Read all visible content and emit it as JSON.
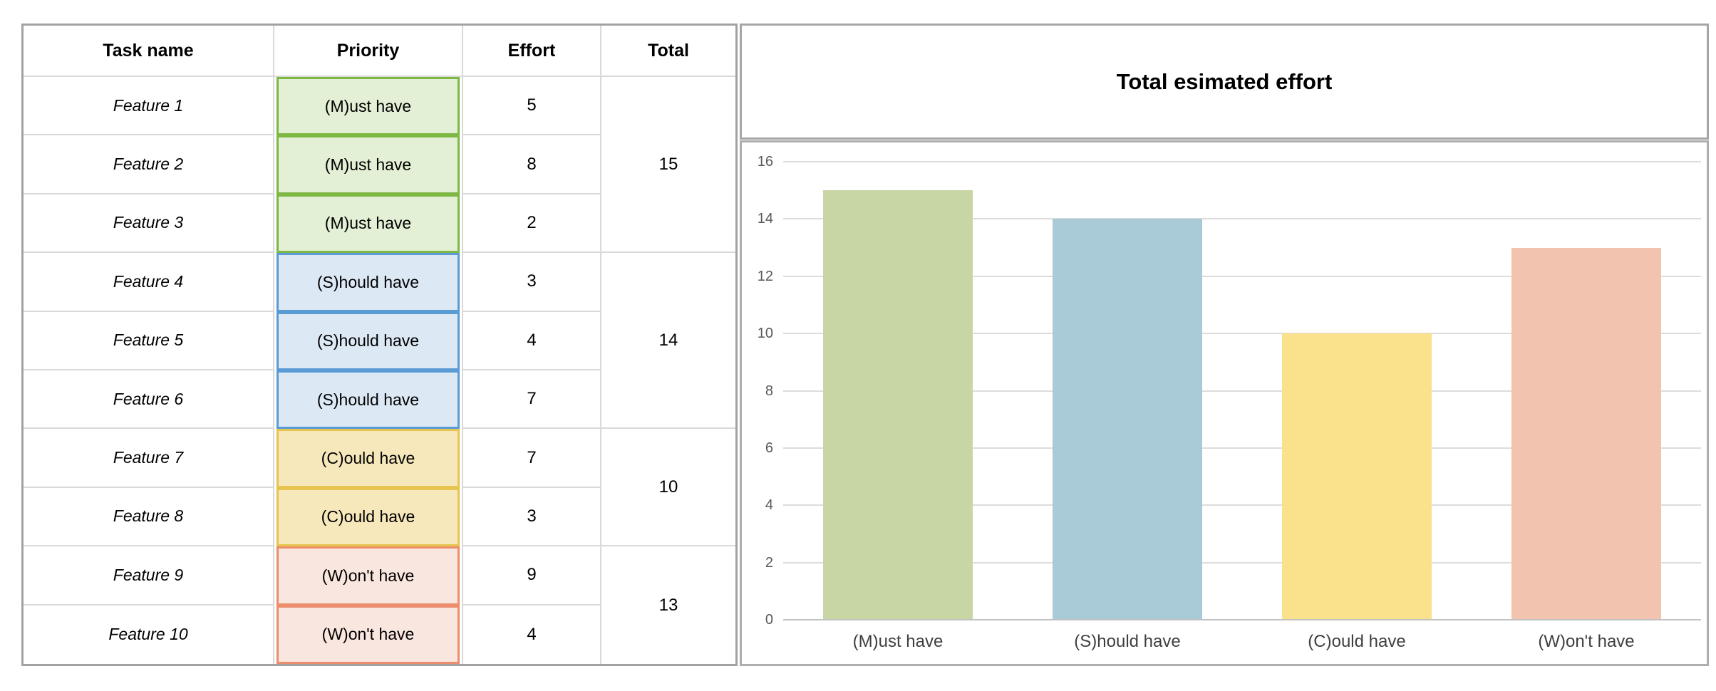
{
  "table": {
    "headers": [
      "Task name",
      "Priority",
      "Effort",
      "Total"
    ],
    "rows": [
      {
        "task": "Feature 1",
        "priority": "(M)ust have",
        "effort": "5"
      },
      {
        "task": "Feature 2",
        "priority": "(M)ust have",
        "effort": "8"
      },
      {
        "task": "Feature 3",
        "priority": "(M)ust have",
        "effort": "2"
      },
      {
        "task": "Feature 4",
        "priority": "(S)hould have",
        "effort": "3"
      },
      {
        "task": "Feature 5",
        "priority": "(S)hould have",
        "effort": "4"
      },
      {
        "task": "Feature 6",
        "priority": "(S)hould have",
        "effort": "7"
      },
      {
        "task": "Feature 7",
        "priority": "(C)ould have",
        "effort": "7"
      },
      {
        "task": "Feature 8",
        "priority": "(C)ould have",
        "effort": "3"
      },
      {
        "task": "Feature 9",
        "priority": "(W)on't have",
        "effort": "9"
      },
      {
        "task": "Feature 10",
        "priority": "(W)on't have",
        "effort": "4"
      }
    ],
    "totals": [
      "15",
      "14",
      "10",
      "13"
    ]
  },
  "chart_data": {
    "type": "bar",
    "title": "Total esimated effort",
    "categories": [
      "(M)ust have",
      "(S)hould have",
      "(C)ould have",
      "(W)on't have"
    ],
    "values": [
      15,
      14,
      10,
      13
    ],
    "xlabel": "",
    "ylabel": "",
    "ylim": [
      0,
      16
    ],
    "yticks": [
      0,
      2,
      4,
      6,
      8,
      10,
      12,
      14,
      16
    ],
    "grid": true,
    "legend": "none",
    "bar_colors": [
      "#c8d6a4",
      "#a9cbd8",
      "#fae18c",
      "#f2c3ae"
    ]
  },
  "colors": {
    "priority": {
      "must-fill": "#e4f0d5",
      "must-border": "#7cb843",
      "should-fill": "#dce9f5",
      "should-border": "#5b9bd5",
      "could-fill": "#f6e8bb",
      "could-border": "#e6c44d",
      "wont-fill": "#f9e6de",
      "wont-border": "#ec8d6d"
    },
    "table_outer_border": "#a2a2a2",
    "table_gridline": "#d9d9d9",
    "chart_gridline": "#dcdcdc"
  }
}
